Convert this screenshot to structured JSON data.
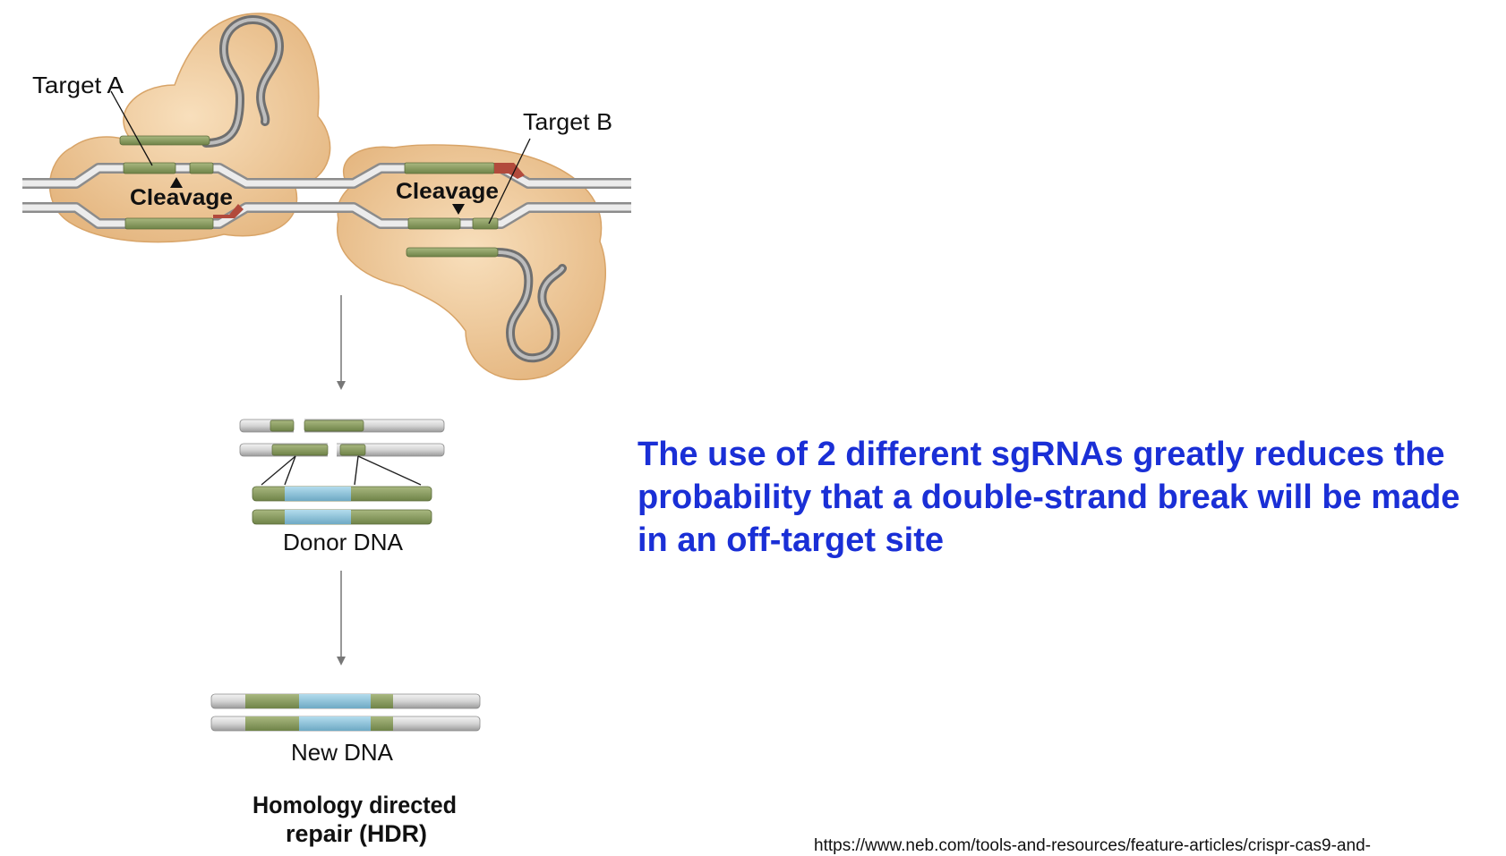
{
  "diagram": {
    "labels": {
      "target_a": "Target A",
      "target_b": "Target B",
      "cleavage_1": "Cleavage",
      "cleavage_2": "Cleavage",
      "donor_dna": "Donor DNA",
      "new_dna": "New DNA",
      "hdr_line1": "Homology directed",
      "hdr_line2": "repair (HDR)"
    },
    "colors": {
      "cas9_protein": "#efc89a",
      "homology_arm": "#8ea064",
      "donor_insert": "#8cc3da",
      "pam": "#b24a3c",
      "dna_backbone": "#d8d8d8",
      "guide_rna": "#8a8a8a"
    }
  },
  "statement": "The use of 2 different sgRNAs greatly reduces the probability that a double-strand break will be made in an off-target site",
  "source_url": "https://www.neb.com/tools-and-resources/feature-articles/crispr-cas9-and-"
}
